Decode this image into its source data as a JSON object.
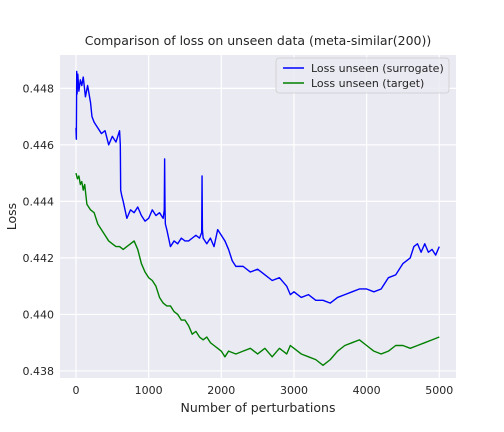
{
  "chart_data": {
    "type": "line",
    "title": "Comparison of loss on unseen data (meta-similar(200))",
    "xlabel": "Number of perturbations",
    "ylabel": "Loss",
    "xlim": [
      -220,
      5230
    ],
    "ylim": [
      0.43775,
      0.44918
    ],
    "xticks": [
      0,
      1000,
      2000,
      3000,
      4000,
      5000
    ],
    "yticks": [
      0.438,
      0.44,
      0.442,
      0.444,
      0.446,
      0.448
    ],
    "xtick_labels": [
      "0",
      "1000",
      "2000",
      "3000",
      "4000",
      "5000"
    ],
    "ytick_labels": [
      "0.438",
      "0.440",
      "0.442",
      "0.444",
      "0.446",
      "0.448"
    ],
    "grid": true,
    "legend_position": "top-right",
    "background": "#eaeaf2",
    "series": [
      {
        "name": "Loss unseen (surrogate)",
        "color": "#0000ff",
        "x": [
          0,
          5,
          10,
          15,
          25,
          40,
          60,
          80,
          100,
          130,
          160,
          200,
          220,
          250,
          300,
          350,
          400,
          450,
          500,
          550,
          600,
          610,
          615,
          630,
          650,
          700,
          750,
          800,
          850,
          900,
          950,
          1000,
          1050,
          1100,
          1150,
          1200,
          1215,
          1220,
          1225,
          1230,
          1250,
          1300,
          1350,
          1400,
          1450,
          1500,
          1550,
          1600,
          1650,
          1700,
          1730,
          1735,
          1740,
          1750,
          1800,
          1850,
          1900,
          1950,
          2000,
          2050,
          2100,
          2150,
          2200,
          2300,
          2400,
          2500,
          2600,
          2700,
          2800,
          2900,
          2950,
          3000,
          3100,
          3200,
          3300,
          3400,
          3500,
          3600,
          3700,
          3800,
          3900,
          4000,
          4100,
          4200,
          4300,
          4400,
          4500,
          4600,
          4650,
          4700,
          4750,
          4800,
          4850,
          4900,
          4950,
          5000
        ],
        "values": [
          0.4466,
          0.4462,
          0.4486,
          0.4478,
          0.4485,
          0.4479,
          0.4483,
          0.4481,
          0.4484,
          0.4477,
          0.4481,
          0.4475,
          0.447,
          0.4468,
          0.4466,
          0.4464,
          0.4465,
          0.446,
          0.4463,
          0.4461,
          0.4465,
          0.446,
          0.4444,
          0.4442,
          0.444,
          0.4434,
          0.4437,
          0.4436,
          0.4438,
          0.4435,
          0.4433,
          0.4434,
          0.4437,
          0.4435,
          0.4436,
          0.4434,
          0.4437,
          0.4455,
          0.4438,
          0.4432,
          0.443,
          0.4424,
          0.4426,
          0.4425,
          0.4427,
          0.4426,
          0.4426,
          0.4427,
          0.4428,
          0.4427,
          0.4429,
          0.4449,
          0.443,
          0.4427,
          0.4425,
          0.4427,
          0.4424,
          0.443,
          0.4428,
          0.4426,
          0.4423,
          0.4419,
          0.4417,
          0.4417,
          0.4415,
          0.4416,
          0.4414,
          0.4412,
          0.4413,
          0.441,
          0.4407,
          0.4408,
          0.4406,
          0.4407,
          0.4405,
          0.4405,
          0.4404,
          0.4406,
          0.4407,
          0.4408,
          0.4409,
          0.4409,
          0.4408,
          0.4409,
          0.4413,
          0.4414,
          0.4418,
          0.442,
          0.4424,
          0.4425,
          0.4422,
          0.4425,
          0.4422,
          0.4423,
          0.4421,
          0.4424
        ]
      },
      {
        "name": "Loss unseen (target)",
        "color": "#008000",
        "x": [
          0,
          20,
          40,
          60,
          80,
          100,
          120,
          150,
          200,
          250,
          300,
          350,
          400,
          450,
          500,
          550,
          600,
          650,
          700,
          750,
          800,
          850,
          900,
          950,
          1000,
          1050,
          1100,
          1150,
          1200,
          1250,
          1300,
          1350,
          1400,
          1450,
          1500,
          1550,
          1600,
          1650,
          1700,
          1750,
          1800,
          1850,
          1900,
          1950,
          2000,
          2050,
          2100,
          2200,
          2300,
          2400,
          2500,
          2600,
          2700,
          2800,
          2900,
          2950,
          3000,
          3100,
          3200,
          3300,
          3400,
          3500,
          3600,
          3700,
          3800,
          3900,
          4000,
          4100,
          4200,
          4300,
          4400,
          4500,
          4600,
          4700,
          4800,
          4900,
          5000
        ],
        "values": [
          0.445,
          0.4448,
          0.4449,
          0.4446,
          0.4447,
          0.4444,
          0.4446,
          0.4439,
          0.4437,
          0.4436,
          0.4432,
          0.443,
          0.4428,
          0.4426,
          0.4425,
          0.4424,
          0.4424,
          0.4423,
          0.4424,
          0.4425,
          0.4426,
          0.4423,
          0.4418,
          0.4415,
          0.4413,
          0.4412,
          0.441,
          0.4406,
          0.4404,
          0.4403,
          0.4403,
          0.4401,
          0.44,
          0.4398,
          0.4398,
          0.4396,
          0.4393,
          0.4394,
          0.4392,
          0.4391,
          0.4392,
          0.439,
          0.4389,
          0.4388,
          0.4387,
          0.4385,
          0.4387,
          0.4386,
          0.4387,
          0.4388,
          0.4386,
          0.4388,
          0.4385,
          0.4388,
          0.4386,
          0.4389,
          0.4388,
          0.4386,
          0.4385,
          0.4384,
          0.4382,
          0.4384,
          0.4387,
          0.4389,
          0.439,
          0.4391,
          0.4389,
          0.4387,
          0.4386,
          0.4387,
          0.4389,
          0.4389,
          0.4388,
          0.4389,
          0.439,
          0.4391,
          0.4392
        ]
      }
    ]
  }
}
